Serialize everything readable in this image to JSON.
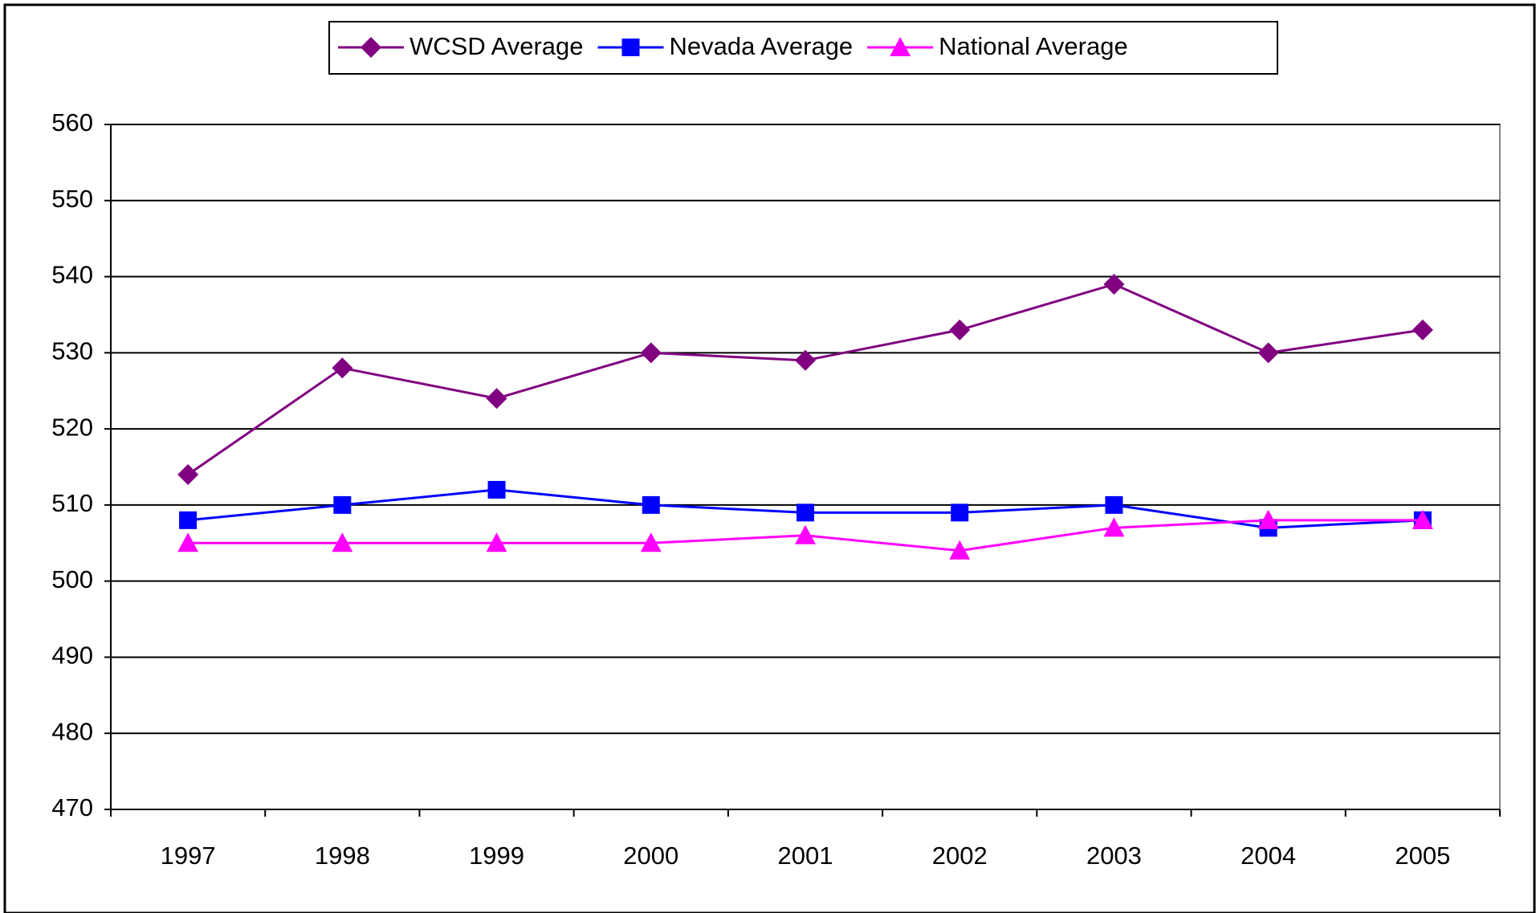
{
  "chart_data": {
    "type": "line",
    "categories": [
      "1997",
      "1998",
      "1999",
      "2000",
      "2001",
      "2002",
      "2003",
      "2004",
      "2005"
    ],
    "series": [
      {
        "name": "WCSD Average",
        "color": "#800080",
        "marker": "diamond",
        "values": [
          514,
          528,
          524,
          530,
          529,
          533,
          539,
          530,
          533
        ]
      },
      {
        "name": "Nevada Average",
        "color": "#0000ff",
        "marker": "square",
        "values": [
          508,
          510,
          512,
          510,
          509,
          509,
          510,
          507,
          508
        ]
      },
      {
        "name": "National Average",
        "color": "#ff00ff",
        "marker": "triangle",
        "values": [
          505,
          505,
          505,
          505,
          506,
          504,
          507,
          508,
          508
        ]
      }
    ],
    "ylim": [
      470,
      560
    ],
    "yticks": [
      470,
      480,
      490,
      500,
      510,
      520,
      530,
      540,
      550,
      560
    ],
    "grid": true,
    "legend": "top"
  }
}
